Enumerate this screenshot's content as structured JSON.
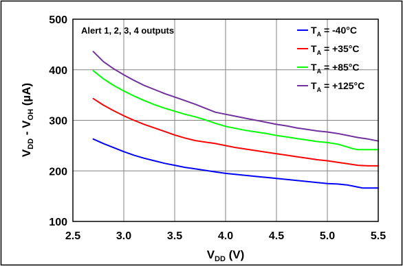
{
  "chart_data": {
    "type": "line",
    "title": "",
    "annotation": "Alert 1, 2, 3, 4 outputs",
    "xlabel": {
      "main": "V",
      "sub": "DD",
      "unit": " (V)"
    },
    "ylabel": {
      "a": "V",
      "a_sub": "DD",
      "mid": " - V",
      "b_sub": "OH",
      "unit": " (µA)"
    },
    "xlim": [
      2.5,
      5.5
    ],
    "ylim": [
      100,
      500
    ],
    "x_ticks": [
      2.5,
      3.0,
      3.5,
      4.0,
      4.5,
      5.0,
      5.5
    ],
    "x_tick_labels": [
      "2.5",
      "3.0",
      "3.5",
      "4.0",
      "4.5",
      "5.0",
      "5.5"
    ],
    "y_ticks": [
      100,
      200,
      300,
      400,
      500
    ],
    "y_tick_labels": [
      "100",
      "200",
      "300",
      "400",
      "500"
    ],
    "grid": true,
    "legend_position": "top-right",
    "series": [
      {
        "name": "-40°C",
        "legend_prefix": "T",
        "legend_sub": "A",
        "legend_mid": " = ",
        "color": "#0000ff",
        "x": [
          2.7,
          2.8,
          2.9,
          3.0,
          3.1,
          3.2,
          3.3,
          3.4,
          3.5,
          3.6,
          3.7,
          3.8,
          3.9,
          4.0,
          4.1,
          4.2,
          4.3,
          4.4,
          4.5,
          4.6,
          4.7,
          4.8,
          4.9,
          5.0,
          5.1,
          5.2,
          5.3,
          5.35,
          5.4,
          5.5
        ],
        "y": [
          263,
          254,
          246,
          238,
          231,
          225,
          220,
          215,
          211,
          207,
          204,
          201,
          198,
          195,
          193,
          191,
          189,
          187,
          185,
          183,
          181,
          179,
          177,
          175,
          174,
          172,
          168,
          166,
          166,
          166
        ]
      },
      {
        "name": "+35°C",
        "legend_prefix": "T",
        "legend_sub": "A",
        "legend_mid": " = ",
        "color": "#ff0000",
        "x": [
          2.7,
          2.8,
          2.9,
          3.0,
          3.1,
          3.2,
          3.3,
          3.4,
          3.5,
          3.6,
          3.7,
          3.8,
          3.9,
          4.0,
          4.1,
          4.2,
          4.3,
          4.4,
          4.5,
          4.6,
          4.7,
          4.8,
          4.9,
          5.0,
          5.1,
          5.2,
          5.3,
          5.4,
          5.5
        ],
        "y": [
          343,
          330,
          319,
          309,
          300,
          292,
          285,
          278,
          271,
          265,
          260,
          257,
          254,
          250,
          246,
          243,
          240,
          237,
          234,
          231,
          228,
          225,
          222,
          220,
          217,
          214,
          211,
          210,
          210
        ]
      },
      {
        "name": "+85°C",
        "legend_prefix": "T",
        "legend_sub": "A",
        "legend_mid": " = ",
        "color": "#00ff00",
        "x": [
          2.7,
          2.8,
          2.9,
          3.0,
          3.1,
          3.2,
          3.3,
          3.4,
          3.5,
          3.6,
          3.7,
          3.8,
          3.9,
          4.0,
          4.1,
          4.2,
          4.3,
          4.4,
          4.5,
          4.6,
          4.7,
          4.8,
          4.9,
          5.0,
          5.1,
          5.2,
          5.25,
          5.3,
          5.4,
          5.5
        ],
        "y": [
          398,
          382,
          369,
          358,
          348,
          339,
          331,
          324,
          318,
          312,
          307,
          301,
          294,
          288,
          284,
          280,
          277,
          274,
          270,
          267,
          264,
          261,
          258,
          256,
          253,
          247,
          244,
          242,
          242,
          242
        ]
      },
      {
        "name": "+125°C",
        "legend_prefix": "T",
        "legend_sub": "A",
        "legend_mid": " = ",
        "color": "#7030a0",
        "x": [
          2.7,
          2.8,
          2.9,
          3.0,
          3.1,
          3.2,
          3.3,
          3.4,
          3.5,
          3.6,
          3.7,
          3.8,
          3.9,
          4.0,
          4.1,
          4.2,
          4.3,
          4.4,
          4.5,
          4.6,
          4.7,
          4.8,
          4.9,
          5.0,
          5.1,
          5.2,
          5.3,
          5.4,
          5.5
        ],
        "y": [
          436,
          416,
          402,
          390,
          379,
          369,
          361,
          353,
          346,
          339,
          332,
          324,
          316,
          312,
          308,
          304,
          300,
          296,
          292,
          289,
          285,
          282,
          279,
          277,
          274,
          270,
          266,
          263,
          259
        ]
      }
    ]
  }
}
